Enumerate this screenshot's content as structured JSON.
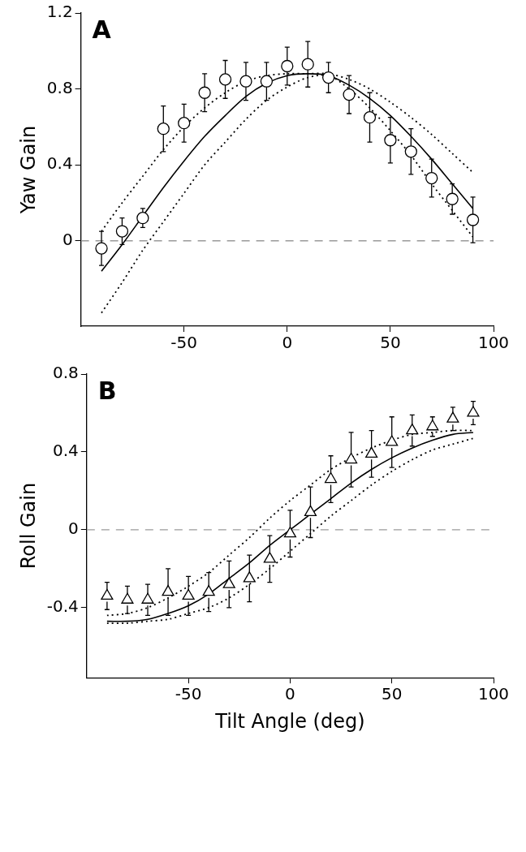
{
  "chart_data": [
    {
      "type": "scatter",
      "title": "A",
      "y_label": "Yaw Gain",
      "x": [
        -90,
        -80,
        -70,
        -60,
        -50,
        -40,
        -30,
        -20,
        -10,
        0,
        10,
        20,
        30,
        40,
        50,
        60,
        70,
        80,
        90
      ],
      "xlim": [
        -100,
        100
      ],
      "xticks": [
        -50,
        0,
        50,
        100
      ],
      "ylim": [
        -0.45,
        1.2
      ],
      "yticks": [
        0,
        0.4,
        0.8,
        1.2
      ],
      "grid": false,
      "reference_line": {
        "value": 0,
        "line_style": "dashed",
        "color": "#9a9a9a"
      },
      "series": [
        {
          "type": "line",
          "line_style": "solid",
          "color": "#000000",
          "values": [
            -0.16,
            -0.02,
            0.13,
            0.28,
            0.42,
            0.55,
            0.66,
            0.76,
            0.83,
            0.87,
            0.88,
            0.87,
            0.82,
            0.75,
            0.66,
            0.55,
            0.43,
            0.3,
            0.17
          ]
        },
        {
          "type": "line",
          "line_style": "dotted",
          "color": "#000000",
          "values": [
            0.05,
            0.2,
            0.34,
            0.48,
            0.6,
            0.7,
            0.78,
            0.84,
            0.87,
            0.88,
            0.88,
            0.88,
            0.85,
            0.8,
            0.73,
            0.65,
            0.56,
            0.46,
            0.36
          ]
        },
        {
          "type": "line",
          "line_style": "dotted",
          "color": "#000000",
          "values": [
            -0.38,
            -0.22,
            -0.05,
            0.1,
            0.25,
            0.4,
            0.52,
            0.64,
            0.74,
            0.81,
            0.86,
            0.87,
            0.8,
            0.7,
            0.58,
            0.45,
            0.3,
            0.16,
            0.02
          ]
        },
        {
          "type": "scatter",
          "marker": "circle",
          "color": "#000000",
          "values": [
            -0.04,
            0.05,
            0.12,
            0.59,
            0.62,
            0.78,
            0.85,
            0.84,
            0.84,
            0.92,
            0.93,
            0.86,
            0.77,
            0.65,
            0.53,
            0.47,
            0.33,
            0.22,
            0.11
          ],
          "errors": [
            0.09,
            0.07,
            0.05,
            0.12,
            0.1,
            0.1,
            0.1,
            0.1,
            0.1,
            0.1,
            0.12,
            0.08,
            0.1,
            0.13,
            0.12,
            0.12,
            0.1,
            0.08,
            0.12
          ]
        }
      ]
    },
    {
      "type": "scatter",
      "title": "B",
      "y_label": "Roll Gain",
      "x_label": "Tilt Angle (deg)",
      "x": [
        -90,
        -80,
        -70,
        -60,
        -50,
        -40,
        -30,
        -20,
        -10,
        0,
        10,
        20,
        30,
        40,
        50,
        60,
        70,
        80,
        90
      ],
      "xlim": [
        -100,
        100
      ],
      "xticks": [
        -50,
        0,
        50,
        100
      ],
      "ylim": [
        -0.76,
        0.8
      ],
      "yticks": [
        -0.4,
        0,
        0.4,
        0.8
      ],
      "grid": false,
      "reference_line": {
        "value": 0,
        "line_style": "dashed",
        "color": "#9a9a9a"
      },
      "series": [
        {
          "type": "line",
          "line_style": "solid",
          "color": "#000000",
          "values": [
            -0.47,
            -0.47,
            -0.46,
            -0.43,
            -0.39,
            -0.33,
            -0.25,
            -0.17,
            -0.08,
            0.0,
            0.08,
            0.16,
            0.24,
            0.31,
            0.37,
            0.42,
            0.46,
            0.49,
            0.5
          ]
        },
        {
          "type": "line",
          "line_style": "dotted",
          "color": "#000000",
          "values": [
            -0.44,
            -0.43,
            -0.4,
            -0.35,
            -0.29,
            -0.22,
            -0.13,
            -0.04,
            0.06,
            0.15,
            0.23,
            0.31,
            0.37,
            0.42,
            0.46,
            0.49,
            0.5,
            0.51,
            0.51
          ]
        },
        {
          "type": "line",
          "line_style": "dotted",
          "color": "#000000",
          "values": [
            -0.48,
            -0.48,
            -0.47,
            -0.46,
            -0.43,
            -0.4,
            -0.35,
            -0.28,
            -0.2,
            -0.11,
            -0.02,
            0.07,
            0.15,
            0.23,
            0.3,
            0.36,
            0.41,
            0.44,
            0.47
          ]
        },
        {
          "type": "scatter",
          "marker": "triangle",
          "color": "#000000",
          "values": [
            -0.34,
            -0.36,
            -0.36,
            -0.32,
            -0.34,
            -0.32,
            -0.28,
            -0.25,
            -0.15,
            -0.02,
            0.09,
            0.26,
            0.36,
            0.39,
            0.45,
            0.51,
            0.53,
            0.57,
            0.6
          ],
          "errors": [
            0.07,
            0.07,
            0.08,
            0.12,
            0.1,
            0.1,
            0.12,
            0.12,
            0.12,
            0.12,
            0.13,
            0.12,
            0.14,
            0.12,
            0.13,
            0.08,
            0.05,
            0.06,
            0.06
          ]
        }
      ]
    }
  ]
}
